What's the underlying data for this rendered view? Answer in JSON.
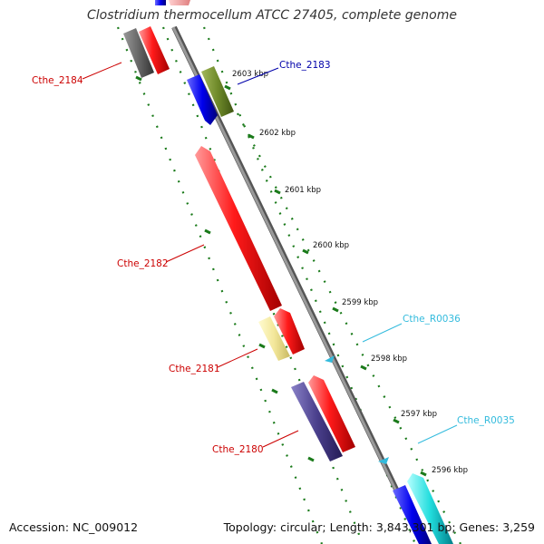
{
  "title": "Clostridium thermocellum ATCC 27405, complete genome",
  "footer": {
    "accession": "Accession: NC_009012",
    "summary": "Topology: circular; Length: 3,843,301 bp; Genes: 3,259"
  },
  "colors": {
    "backbone": "#888888",
    "tick": "#1a7a1a",
    "red_label": "#cc0000",
    "blue_label": "#0000aa",
    "cyan_label": "#33bbdd"
  },
  "ticks": [
    {
      "label": "2603 kbp"
    },
    {
      "label": "2602 kbp"
    },
    {
      "label": "2601 kbp"
    },
    {
      "label": "2600 kbp"
    },
    {
      "label": "2599 kbp"
    },
    {
      "label": "2598 kbp"
    },
    {
      "label": "2597 kbp"
    },
    {
      "label": "2596 kbp"
    }
  ],
  "features": [
    {
      "label": "Cthe_2184",
      "color": "#cc0000"
    },
    {
      "label": "Cthe_2183",
      "color": "#0000aa"
    },
    {
      "label": "Cthe_2182",
      "color": "#cc0000"
    },
    {
      "label": "Cthe_R0036",
      "color": "#33bbdd"
    },
    {
      "label": "Cthe_2181",
      "color": "#cc0000"
    },
    {
      "label": "Cthe_2180",
      "color": "#cc0000"
    },
    {
      "label": "Cthe_R0035",
      "color": "#33bbdd"
    }
  ]
}
